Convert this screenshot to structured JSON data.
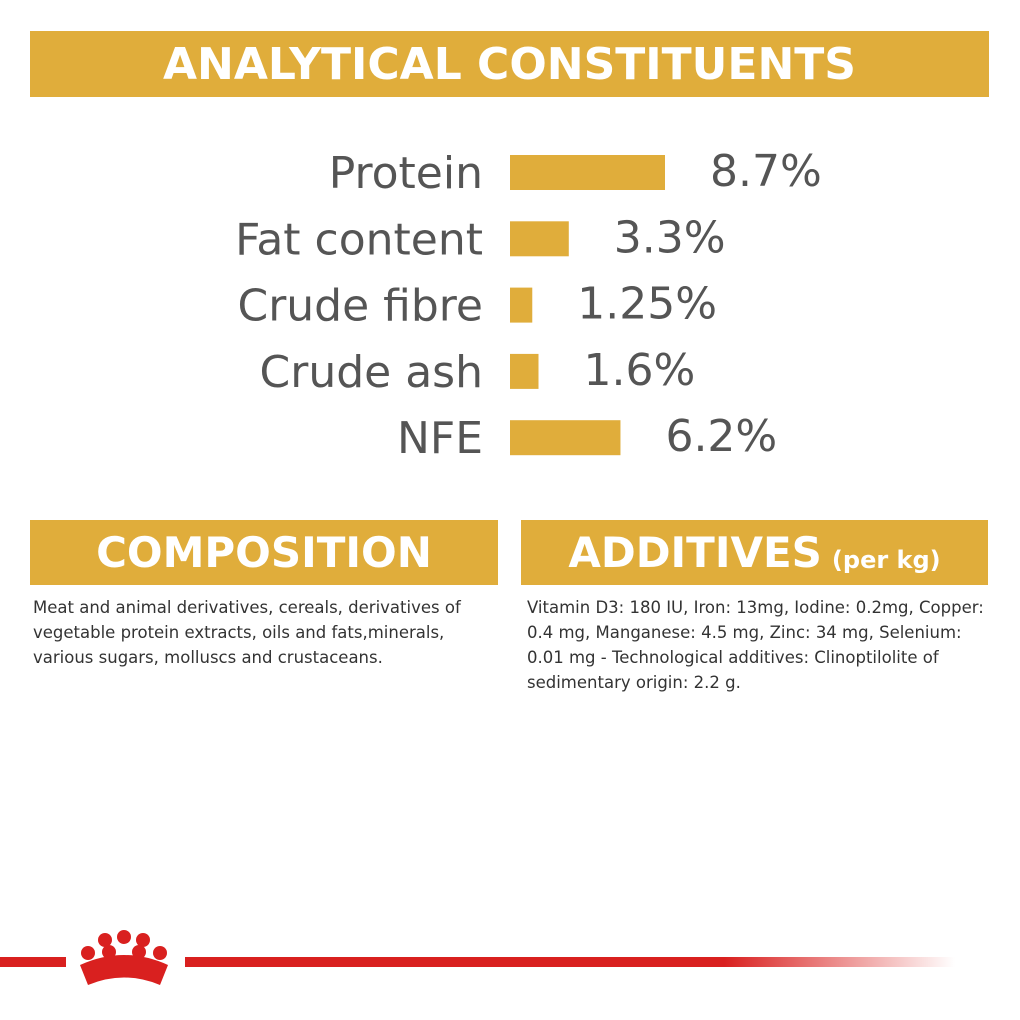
{
  "header": {
    "title": "ANALYTICAL CONSTITUENTS"
  },
  "chart_data": {
    "type": "hbar",
    "color": "#e0ad3b",
    "categories": [
      "Protein",
      "Fat content",
      "Crude fibre",
      "Crude ash",
      "NFE"
    ],
    "values": [
      8.7,
      3.3,
      1.25,
      1.6,
      6.2
    ],
    "value_labels": [
      "8.7%",
      "3.3%",
      "1.25%",
      "1.6%",
      "6.2%"
    ]
  },
  "composition": {
    "title": "COMPOSITION",
    "text": "Meat and animal derivatives, cereals, derivatives of vegetable protein extracts, oils and fats,minerals, various sugars, molluscs and crustaceans."
  },
  "additives": {
    "title": "ADDITIVES",
    "unit": "(per kg)",
    "text": "Vitamin D3: 180 IU, Iron: 13mg, Iodine: 0.2mg, Copper: 0.4 mg, Manganese: 4.5 mg, Zinc: 34 mg, Selenium: 0.01 mg - Technological additives: Clinoptilolite of sedimentary origin: 2.2 g."
  }
}
